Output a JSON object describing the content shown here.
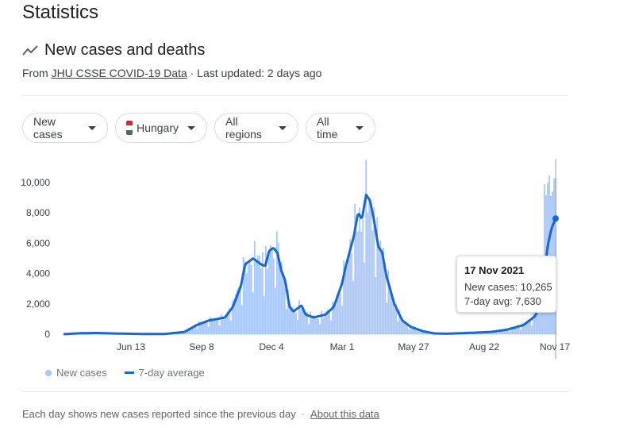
{
  "page": {
    "title": "Statistics"
  },
  "section": {
    "title": "New cases and deaths",
    "source_prefix": "From ",
    "source_link": "JHU CSSE COVID-19 Data",
    "updated": " · Last updated: 2 days ago"
  },
  "filters": [
    {
      "label": "New cases"
    },
    {
      "label": "Hungary",
      "flag_colors": [
        "#ce2939",
        "#ffffff",
        "#477050"
      ]
    },
    {
      "label": "All regions"
    },
    {
      "label": "All time"
    }
  ],
  "chart_data": {
    "type": "bar",
    "y_ticks": [
      "10,000",
      "8,000",
      "6,000",
      "4,000",
      "2,000",
      "0"
    ],
    "ylim": [
      0,
      11600
    ],
    "x_ticks": [
      "Jun 13",
      "Sep 8",
      "Dec 4",
      "Mar 1",
      "May 27",
      "Aug 22",
      "Nov 17"
    ],
    "series": [
      {
        "name": "New cases",
        "color": "#a8c7fa"
      },
      {
        "name": "7-day average",
        "color": "#1967d2"
      }
    ],
    "avg_points": [
      [
        0,
        0
      ],
      [
        0.04,
        60
      ],
      [
        0.08,
        80
      ],
      [
        0.12,
        50
      ],
      [
        0.18,
        20
      ],
      [
        0.25,
        10
      ],
      [
        0.3,
        150
      ],
      [
        0.33,
        600
      ],
      [
        0.36,
        900
      ],
      [
        0.4,
        1100
      ],
      [
        0.42,
        1800
      ],
      [
        0.44,
        3200
      ],
      [
        0.45,
        4600
      ],
      [
        0.47,
        5000
      ],
      [
        0.49,
        4600
      ],
      [
        0.5,
        4500
      ],
      [
        0.51,
        5500
      ],
      [
        0.52,
        5700
      ],
      [
        0.53,
        5400
      ],
      [
        0.54,
        4200
      ],
      [
        0.55,
        3500
      ],
      [
        0.56,
        1800
      ],
      [
        0.57,
        1500
      ],
      [
        0.58,
        1700
      ],
      [
        0.59,
        1900
      ],
      [
        0.6,
        1300
      ],
      [
        0.62,
        1100
      ],
      [
        0.65,
        1300
      ],
      [
        0.67,
        1800
      ],
      [
        0.69,
        3300
      ],
      [
        0.7,
        4500
      ],
      [
        0.72,
        6500
      ],
      [
        0.73,
        8000
      ],
      [
        0.74,
        7600
      ],
      [
        0.75,
        9200
      ],
      [
        0.76,
        8800
      ],
      [
        0.77,
        7500
      ],
      [
        0.78,
        5800
      ],
      [
        0.79,
        5400
      ],
      [
        0.8,
        3900
      ],
      [
        0.82,
        2000
      ],
      [
        0.84,
        900
      ],
      [
        0.86,
        500
      ],
      [
        0.89,
        200
      ],
      [
        0.92,
        50
      ],
      [
        0.95,
        30
      ],
      [
        0.98,
        60
      ],
      [
        1.02,
        100
      ],
      [
        1.06,
        150
      ],
      [
        1.1,
        300
      ],
      [
        1.14,
        600
      ],
      [
        1.17,
        1200
      ],
      [
        1.19,
        3200
      ],
      [
        1.2,
        5800
      ],
      [
        1.21,
        7000
      ],
      [
        1.22,
        7630
      ]
    ],
    "highlight": {
      "date": "17 Nov 2021",
      "new_cases": 10265,
      "avg": 7630
    }
  },
  "tooltip": {
    "date": "17 Nov 2021",
    "new_cases": "New cases: 10,265",
    "avg": "7-day avg: 7,630"
  },
  "legend": {
    "cases": "New cases",
    "avg": "7-day average"
  },
  "footer": {
    "note": "Each day shows new cases reported since the previous day",
    "about": "About this data"
  }
}
